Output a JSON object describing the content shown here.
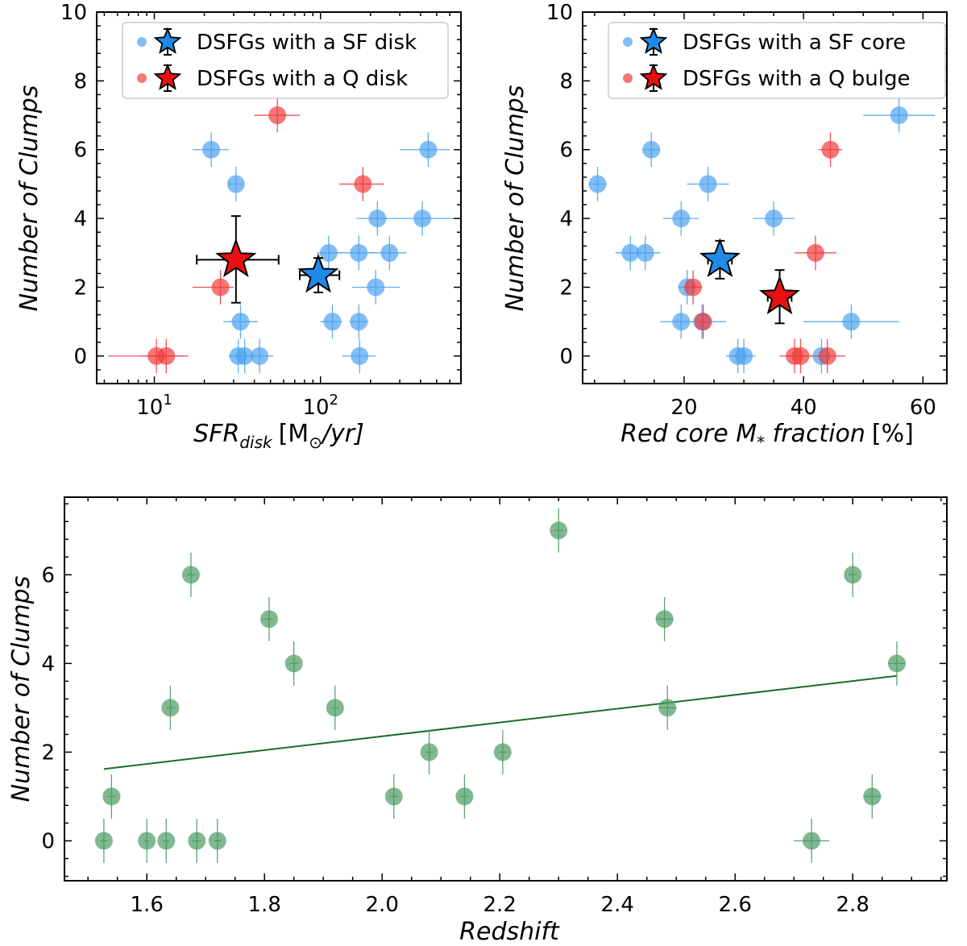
{
  "colors": {
    "sf_point": "#4da3f0",
    "q_point": "#f03c3c",
    "sf_star": "#1f8ae8",
    "q_star": "#e81010",
    "green_point": "#4a9a62",
    "fit_line": "#1a6e2a"
  },
  "chart_data": [
    {
      "id": "panel_sfr",
      "type": "scatter",
      "xscale": "log",
      "xlim": [
        4.5,
        700
      ],
      "ylim": [
        -0.8,
        10
      ],
      "xlabel": "SFR",
      "xlabel_sub": "disk",
      "xlabel_unit_open": "[M",
      "xlabel_unit_sub": "⊙",
      "xlabel_unit_close": "/yr]",
      "ylabel": "Number of Clumps",
      "xticks": [
        10,
        100
      ],
      "xtick_labels": [
        {
          "base": "10",
          "exp": "1"
        },
        {
          "base": "10",
          "exp": "2"
        }
      ],
      "yticks": [
        0,
        2,
        4,
        6,
        8,
        10
      ],
      "ytick_labels": [
        "0",
        "2",
        "4",
        "6",
        "8",
        "10"
      ],
      "legend": [
        {
          "label": "DSFGs with a SF disk",
          "color_key": "sf_point",
          "star_key": "sf_star"
        },
        {
          "label": "DSFGs with a Q disk",
          "color_key": "q_point",
          "star_key": "q_star"
        }
      ],
      "series": [
        {
          "name": "DSFGs with a SF disk",
          "color_key": "sf_point",
          "points": [
            {
              "x": 22,
              "y": 6,
              "xl": 17,
              "xh": 28,
              "yerr": 0.5
            },
            {
              "x": 31,
              "y": 5,
              "xl": 28,
              "xh": 34,
              "yerr": 0.5
            },
            {
              "x": 33,
              "y": 1,
              "xl": 26,
              "xh": 42,
              "yerr": 0.5
            },
            {
              "x": 32,
              "y": 0,
              "xl": 28,
              "xh": 36,
              "yerr": 0.5
            },
            {
              "x": 35,
              "y": 0,
              "xl": 30,
              "xh": 40,
              "yerr": 0.5
            },
            {
              "x": 43,
              "y": 0,
              "xl": 36,
              "xh": 52,
              "yerr": 0.5
            },
            {
              "x": 112,
              "y": 3,
              "xl": 95,
              "xh": 135,
              "yerr": 0.5
            },
            {
              "x": 118,
              "y": 1,
              "xl": 100,
              "xh": 135,
              "yerr": 0.5
            },
            {
              "x": 170,
              "y": 3,
              "xl": 130,
              "xh": 210,
              "yerr": 0.5
            },
            {
              "x": 170,
              "y": 1,
              "xl": 150,
              "xh": 195,
              "yerr": 0.5
            },
            {
              "x": 172,
              "y": 0,
              "xl": 135,
              "xh": 215,
              "yerr": 0.5
            },
            {
              "x": 215,
              "y": 2,
              "xl": 155,
              "xh": 300,
              "yerr": 0.5
            },
            {
              "x": 220,
              "y": 4,
              "xl": 165,
              "xh": 255,
              "yerr": 0.5
            },
            {
              "x": 260,
              "y": 3,
              "xl": 195,
              "xh": 330,
              "yerr": 0.5
            },
            {
              "x": 410,
              "y": 4,
              "xl": 200,
              "xh": 640,
              "yerr": 0.5
            },
            {
              "x": 445,
              "y": 6,
              "xl": 300,
              "xh": 600,
              "yerr": 0.5
            }
          ]
        },
        {
          "name": "DSFGs with a Q disk",
          "color_key": "q_point",
          "points": [
            {
              "x": 10.3,
              "y": 0,
              "xl": 5.3,
              "xh": 15,
              "yerr": 0.5
            },
            {
              "x": 11.8,
              "y": 0,
              "xl": 8.5,
              "xh": 16,
              "yerr": 0.5
            },
            {
              "x": 25,
              "y": 2,
              "xl": 17,
              "xh": 30,
              "yerr": 0.5
            },
            {
              "x": 55,
              "y": 7,
              "xl": 40,
              "xh": 75,
              "yerr": 0.5
            },
            {
              "x": 180,
              "y": 5,
              "xl": 130,
              "xh": 240,
              "yerr": 0.5
            }
          ]
        }
      ],
      "means": [
        {
          "name": "SF mean",
          "star_key": "sf_star",
          "x": 97,
          "y": 2.35,
          "xl": 75,
          "xh": 130,
          "yl": 1.85,
          "yh": 2.85
        },
        {
          "name": "Q mean",
          "star_key": "q_star",
          "x": 31,
          "y": 2.8,
          "xl": 18,
          "xh": 56,
          "yl": 1.55,
          "yh": 4.07
        }
      ]
    },
    {
      "id": "panel_core",
      "type": "scatter",
      "xscale": "linear",
      "xlim": [
        3,
        64
      ],
      "ylim": [
        -0.8,
        10
      ],
      "xlabel": "Red core M",
      "xlabel_sub": "*",
      "xlabel_rest": " fraction",
      "xlabel_unit": "[%]",
      "ylabel": "Number of Clumps",
      "xticks": [
        20,
        40,
        60
      ],
      "xtick_labels": [
        "20",
        "40",
        "60"
      ],
      "yticks": [
        0,
        2,
        4,
        6,
        8,
        10
      ],
      "ytick_labels": [
        "0",
        "2",
        "4",
        "6",
        "8",
        "10"
      ],
      "legend": [
        {
          "label": "DSFGs with a SF core",
          "color_key": "sf_point",
          "star_key": "sf_star"
        },
        {
          "label": "DSFGs with a Q bulge",
          "color_key": "q_point",
          "star_key": "q_star"
        }
      ],
      "series": [
        {
          "name": "DSFGs with a SF core",
          "color_key": "sf_point",
          "points": [
            {
              "x": 5.5,
              "y": 5,
              "xl": 4,
              "xh": 7,
              "yerr": 0.5
            },
            {
              "x": 11,
              "y": 3,
              "xl": 8.5,
              "xh": 14,
              "yerr": 0.5
            },
            {
              "x": 13.5,
              "y": 3,
              "xl": 11,
              "xh": 16,
              "yerr": 0.5
            },
            {
              "x": 14.5,
              "y": 6,
              "xl": 13,
              "xh": 16,
              "yerr": 0.5
            },
            {
              "x": 19.5,
              "y": 4,
              "xl": 16.5,
              "xh": 22.5,
              "yerr": 0.5
            },
            {
              "x": 19.5,
              "y": 1,
              "xl": 16,
              "xh": 23,
              "yerr": 0.5
            },
            {
              "x": 20.5,
              "y": 2,
              "xl": 19,
              "xh": 22,
              "yerr": 0.5
            },
            {
              "x": 23,
              "y": 1,
              "xl": 20,
              "xh": 27,
              "yerr": 0.5
            },
            {
              "x": 24,
              "y": 5,
              "xl": 20.5,
              "xh": 27.5,
              "yerr": 0.5
            },
            {
              "x": 29,
              "y": 0,
              "xl": 27,
              "xh": 31,
              "yerr": 0.5
            },
            {
              "x": 30,
              "y": 0,
              "xl": 28,
              "xh": 32,
              "yerr": 0.5
            },
            {
              "x": 35,
              "y": 4,
              "xl": 31.5,
              "xh": 38.5,
              "yerr": 0.5
            },
            {
              "x": 43,
              "y": 0,
              "xl": 42,
              "xh": 44,
              "yerr": 0.5
            },
            {
              "x": 48,
              "y": 1,
              "xl": 40,
              "xh": 56,
              "yerr": 0.5
            },
            {
              "x": 56,
              "y": 7,
              "xl": 50,
              "xh": 62,
              "yerr": 0.5
            }
          ]
        },
        {
          "name": "DSFGs with a Q bulge",
          "color_key": "q_point",
          "points": [
            {
              "x": 21.5,
              "y": 2,
              "xl": 20,
              "xh": 23,
              "yerr": 0.5
            },
            {
              "x": 23.2,
              "y": 1,
              "xl": 22.5,
              "xh": 24,
              "yerr": 0.5
            },
            {
              "x": 38.5,
              "y": 0,
              "xl": 36,
              "xh": 41,
              "yerr": 0.5
            },
            {
              "x": 39.5,
              "y": 0,
              "xl": 37.5,
              "xh": 41.5,
              "yerr": 0.5
            },
            {
              "x": 42,
              "y": 3,
              "xl": 38.5,
              "xh": 45.5,
              "yerr": 0.5
            },
            {
              "x": 44,
              "y": 0,
              "xl": 41,
              "xh": 47,
              "yerr": 0.5
            },
            {
              "x": 44.5,
              "y": 6,
              "xl": 42.5,
              "xh": 46.5,
              "yerr": 0.5
            }
          ]
        }
      ],
      "means": [
        {
          "name": "SF mean",
          "star_key": "sf_star",
          "x": 26,
          "y": 2.8,
          "xl": 24,
          "xh": 28,
          "yl": 2.25,
          "yh": 3.35
        },
        {
          "name": "Q mean",
          "star_key": "q_star",
          "x": 36,
          "y": 1.72,
          "xl": 34,
          "xh": 38,
          "yl": 0.95,
          "yh": 2.5
        }
      ]
    },
    {
      "id": "panel_redshift",
      "type": "scatter",
      "xscale": "linear",
      "xlim": [
        1.46,
        2.96
      ],
      "ylim": [
        -0.9,
        7.75
      ],
      "xlabel": "Redshift",
      "ylabel": "Number of Clumps",
      "xticks": [
        1.6,
        1.8,
        2.0,
        2.2,
        2.4,
        2.6,
        2.8
      ],
      "xtick_labels": [
        "1.6",
        "1.8",
        "2.0",
        "2.2",
        "2.4",
        "2.6",
        "2.8"
      ],
      "yticks": [
        0,
        2,
        4,
        6
      ],
      "ytick_labels": [
        "0",
        "2",
        "4",
        "6"
      ],
      "series": [
        {
          "name": "DSFGs",
          "color_key": "green_point",
          "points": [
            {
              "x": 1.527,
              "y": 0,
              "xl": 1.52,
              "xh": 1.534,
              "yerr": 0.5
            },
            {
              "x": 1.54,
              "y": 1,
              "xl": 1.533,
              "xh": 1.547,
              "yerr": 0.5
            },
            {
              "x": 1.6,
              "y": 0,
              "xl": 1.595,
              "xh": 1.605,
              "yerr": 0.5
            },
            {
              "x": 1.633,
              "y": 0,
              "xl": 1.628,
              "xh": 1.638,
              "yerr": 0.5
            },
            {
              "x": 1.64,
              "y": 3,
              "xl": 1.633,
              "xh": 1.647,
              "yerr": 0.5
            },
            {
              "x": 1.675,
              "y": 6,
              "xl": 1.668,
              "xh": 1.682,
              "yerr": 0.5
            },
            {
              "x": 1.685,
              "y": 0,
              "xl": 1.678,
              "xh": 1.692,
              "yerr": 0.5
            },
            {
              "x": 1.72,
              "y": 0,
              "xl": 1.713,
              "xh": 1.727,
              "yerr": 0.5
            },
            {
              "x": 1.808,
              "y": 5,
              "xl": 1.801,
              "xh": 1.815,
              "yerr": 0.5
            },
            {
              "x": 1.85,
              "y": 4,
              "xl": 1.843,
              "xh": 1.857,
              "yerr": 0.5
            },
            {
              "x": 1.92,
              "y": 3,
              "xl": 1.913,
              "xh": 1.927,
              "yerr": 0.5
            },
            {
              "x": 2.02,
              "y": 1,
              "xl": 2.013,
              "xh": 2.027,
              "yerr": 0.5
            },
            {
              "x": 2.08,
              "y": 2,
              "xl": 2.073,
              "xh": 2.087,
              "yerr": 0.5
            },
            {
              "x": 2.14,
              "y": 1,
              "xl": 2.133,
              "xh": 2.147,
              "yerr": 0.5
            },
            {
              "x": 2.205,
              "y": 2,
              "xl": 2.198,
              "xh": 2.212,
              "yerr": 0.5
            },
            {
              "x": 2.3,
              "y": 7,
              "xl": 2.293,
              "xh": 2.307,
              "yerr": 0.5
            },
            {
              "x": 2.48,
              "y": 5,
              "xl": 2.465,
              "xh": 2.495,
              "yerr": 0.5
            },
            {
              "x": 2.485,
              "y": 3,
              "xl": 2.47,
              "xh": 2.5,
              "yerr": 0.5
            },
            {
              "x": 2.73,
              "y": 0,
              "xl": 2.7,
              "xh": 2.76,
              "yerr": 0.5
            },
            {
              "x": 2.8,
              "y": 6,
              "xl": 2.793,
              "xh": 2.807,
              "yerr": 0.5
            },
            {
              "x": 2.833,
              "y": 1,
              "xl": 2.818,
              "xh": 2.848,
              "yerr": 0.5
            },
            {
              "x": 2.875,
              "y": 4,
              "xl": 2.86,
              "xh": 2.89,
              "yerr": 0.5
            }
          ]
        }
      ],
      "fit": {
        "x0": 1.527,
        "y0": 1.62,
        "x1": 2.875,
        "y1": 3.72
      }
    }
  ]
}
